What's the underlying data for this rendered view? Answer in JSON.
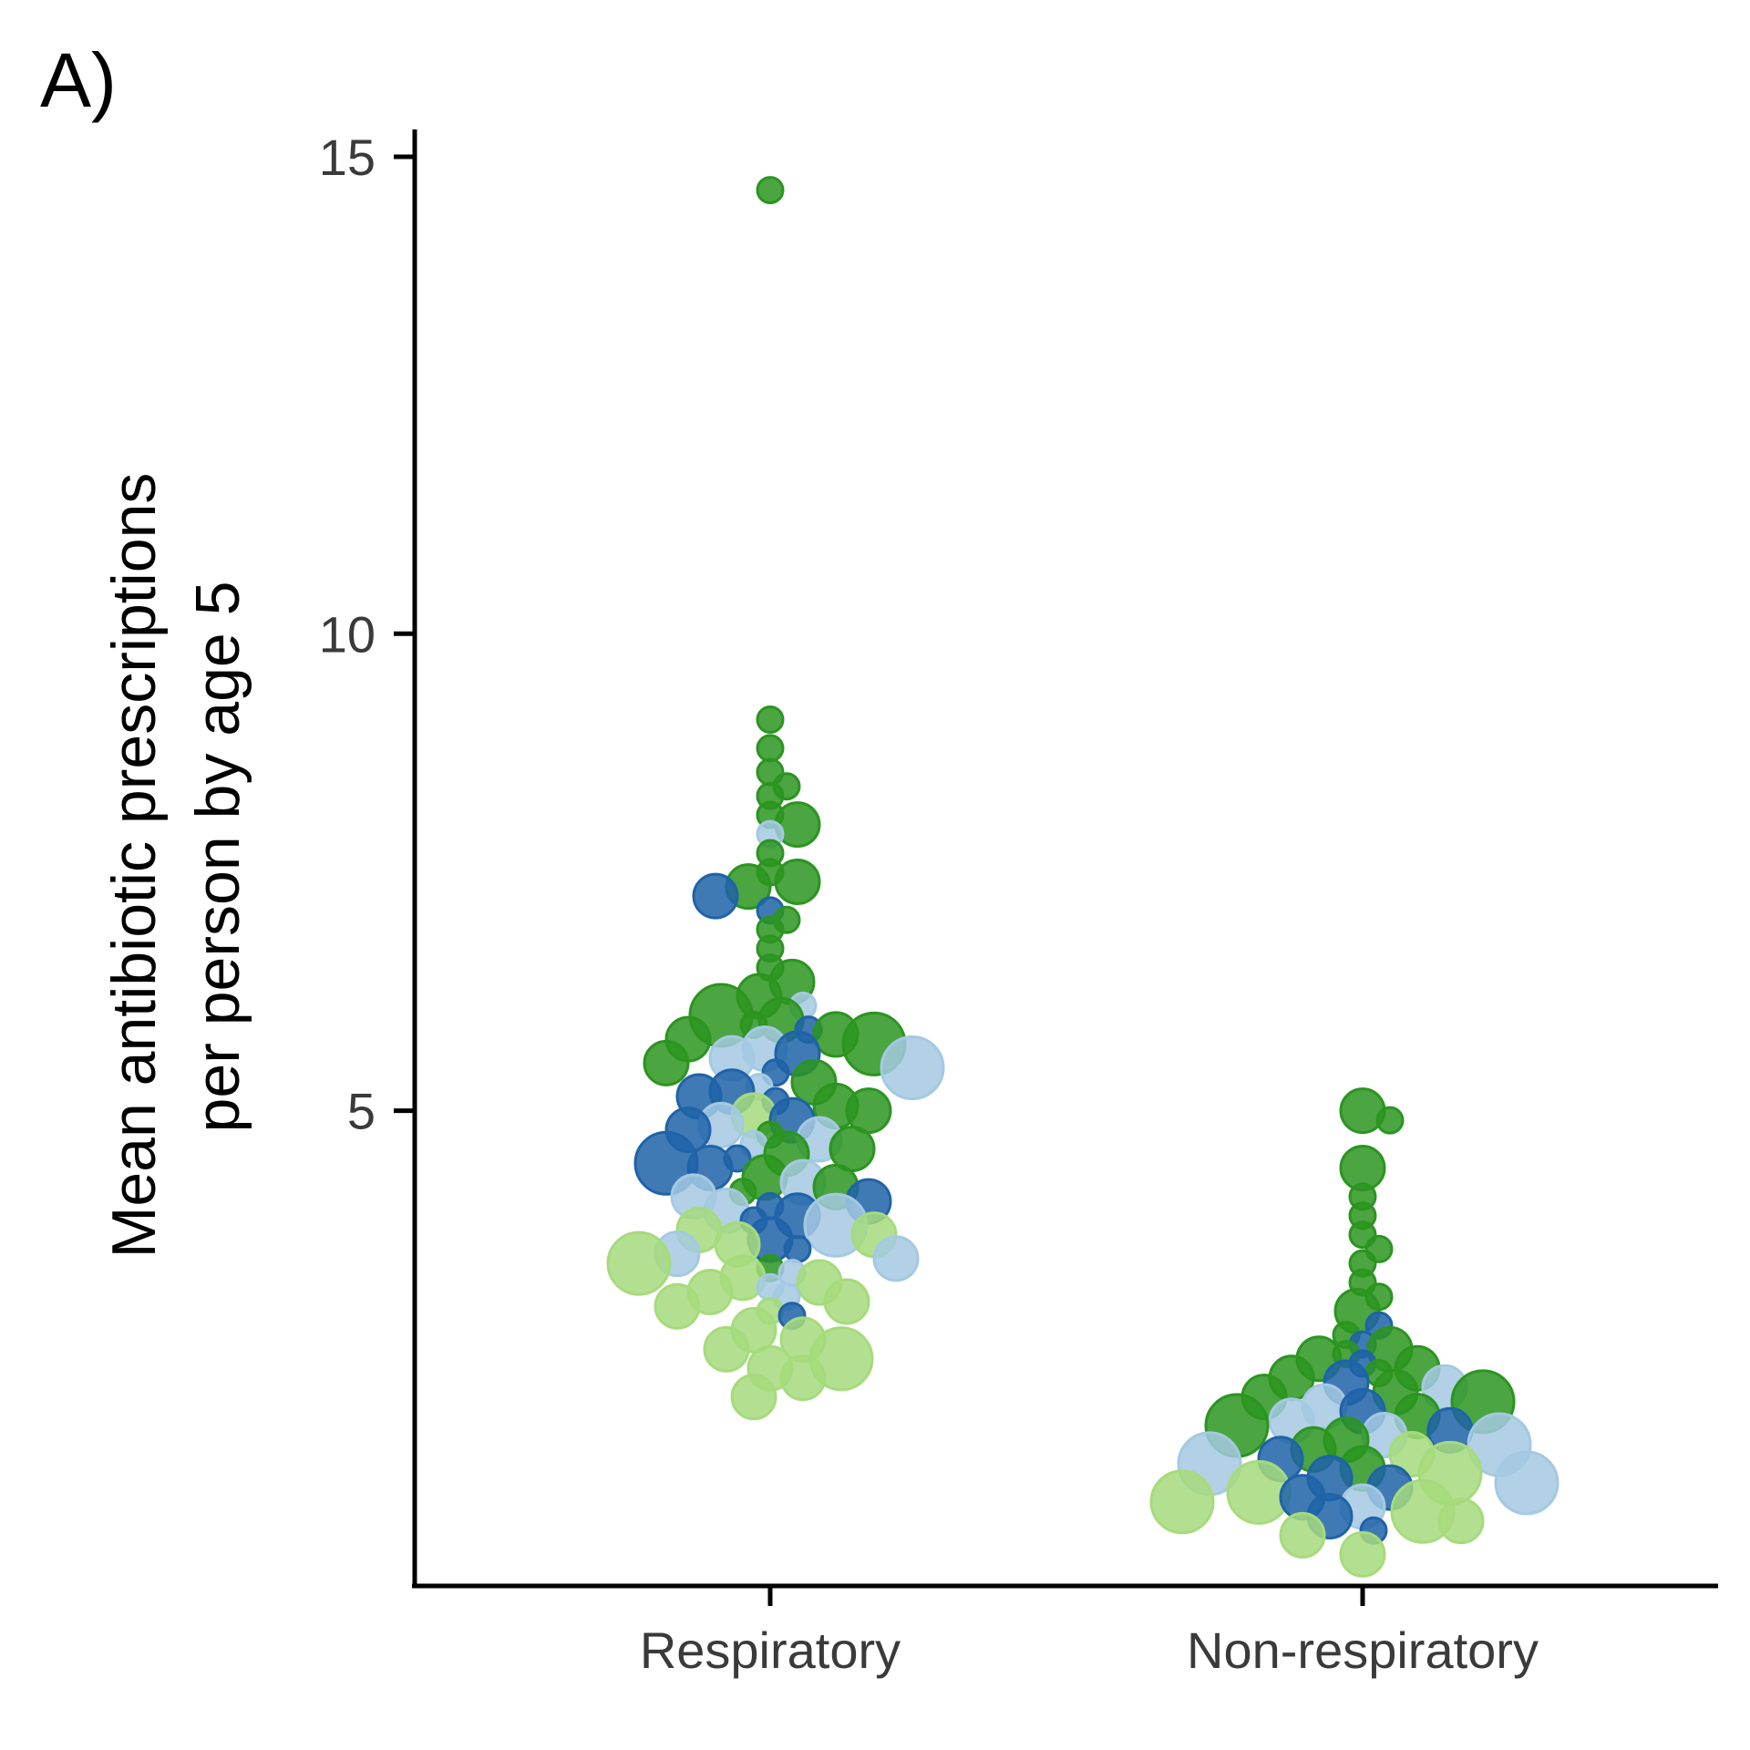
{
  "panel_label": "A)",
  "chart_data": {
    "type": "scatter",
    "subtype": "beeswarm",
    "title": "",
    "ylabel_lines": [
      "Mean antibiotic prescriptions",
      "per person by age 5"
    ],
    "xlabel": "",
    "categories": [
      "Respiratory",
      "Non-respiratory"
    ],
    "ylim": [
      -0.1,
      15.3
    ],
    "yticks": [
      5,
      10,
      15
    ],
    "grid": false,
    "legend": "none",
    "colors": {
      "dark_green": "#2b9520",
      "light_green": "#a6db7c",
      "dark_blue": "#1f63a8",
      "light_blue": "#a4c9e2"
    },
    "series": [
      {
        "category": "Respiratory",
        "points": [
          {
            "y": 14.65,
            "s": 1,
            "c": "dark_green"
          },
          {
            "y": 9.1,
            "s": 1,
            "c": "dark_green"
          },
          {
            "y": 8.8,
            "s": 1,
            "c": "dark_green"
          },
          {
            "y": 8.55,
            "s": 1,
            "c": "dark_green"
          },
          {
            "y": 8.4,
            "s": 1,
            "c": "dark_green"
          },
          {
            "y": 8.3,
            "s": 1,
            "c": "dark_green"
          },
          {
            "y": 8.1,
            "s": 1,
            "c": "dark_green"
          },
          {
            "y": 8.0,
            "s": 2,
            "c": "dark_green"
          },
          {
            "y": 7.9,
            "s": 1,
            "c": "light_blue"
          },
          {
            "y": 7.7,
            "s": 1,
            "c": "dark_green"
          },
          {
            "y": 7.5,
            "s": 1,
            "c": "dark_green"
          },
          {
            "y": 7.4,
            "s": 2,
            "c": "dark_green"
          },
          {
            "y": 7.35,
            "s": 2,
            "c": "dark_green"
          },
          {
            "y": 7.25,
            "s": 2,
            "c": "dark_blue"
          },
          {
            "y": 7.1,
            "s": 1,
            "c": "dark_blue"
          },
          {
            "y": 7.0,
            "s": 1,
            "c": "dark_green"
          },
          {
            "y": 6.9,
            "s": 1,
            "c": "dark_green"
          },
          {
            "y": 6.7,
            "s": 1,
            "c": "dark_green"
          },
          {
            "y": 6.5,
            "s": 1,
            "c": "dark_green"
          },
          {
            "y": 6.35,
            "s": 2,
            "c": "dark_green"
          },
          {
            "y": 6.2,
            "s": 2,
            "c": "dark_green"
          },
          {
            "y": 6.1,
            "s": 1,
            "c": "light_blue"
          },
          {
            "y": 6.0,
            "s": 3,
            "c": "dark_green"
          },
          {
            "y": 5.95,
            "s": 2,
            "c": "dark_green"
          },
          {
            "y": 5.9,
            "s": 1,
            "c": "dark_green"
          },
          {
            "y": 5.85,
            "s": 1,
            "c": "dark_blue"
          },
          {
            "y": 5.8,
            "s": 2,
            "c": "dark_green"
          },
          {
            "y": 5.75,
            "s": 2,
            "c": "dark_green"
          },
          {
            "y": 5.7,
            "s": 3,
            "c": "dark_green"
          },
          {
            "y": 5.65,
            "s": 2,
            "c": "light_blue"
          },
          {
            "y": 5.6,
            "s": 2,
            "c": "dark_blue"
          },
          {
            "y": 5.55,
            "s": 2,
            "c": "light_blue"
          },
          {
            "y": 5.5,
            "s": 2,
            "c": "dark_green"
          },
          {
            "y": 5.45,
            "s": 3,
            "c": "light_blue"
          },
          {
            "y": 5.4,
            "s": 1,
            "c": "dark_blue"
          },
          {
            "y": 5.3,
            "s": 2,
            "c": "dark_green"
          },
          {
            "y": 5.25,
            "s": 1,
            "c": "light_blue"
          },
          {
            "y": 5.2,
            "s": 2,
            "c": "dark_blue"
          },
          {
            "y": 5.15,
            "s": 2,
            "c": "dark_blue"
          },
          {
            "y": 5.1,
            "s": 1,
            "c": "dark_blue"
          },
          {
            "y": 5.05,
            "s": 2,
            "c": "dark_green"
          },
          {
            "y": 5.0,
            "s": 2,
            "c": "dark_green"
          },
          {
            "y": 4.95,
            "s": 2,
            "c": "light_green"
          },
          {
            "y": 4.9,
            "s": 2,
            "c": "dark_blue"
          },
          {
            "y": 4.85,
            "s": 2,
            "c": "light_blue"
          },
          {
            "y": 4.8,
            "s": 2,
            "c": "dark_blue"
          },
          {
            "y": 4.75,
            "s": 1,
            "c": "dark_green"
          },
          {
            "y": 4.7,
            "s": 2,
            "c": "light_blue"
          },
          {
            "y": 4.65,
            "s": 1,
            "c": "light_blue"
          },
          {
            "y": 4.6,
            "s": 2,
            "c": "dark_green"
          },
          {
            "y": 4.55,
            "s": 2,
            "c": "dark_green"
          },
          {
            "y": 4.5,
            "s": 1,
            "c": "dark_blue"
          },
          {
            "y": 4.45,
            "s": 3,
            "c": "dark_blue"
          },
          {
            "y": 4.4,
            "s": 2,
            "c": "dark_blue"
          },
          {
            "y": 4.3,
            "s": 2,
            "c": "dark_green"
          },
          {
            "y": 4.25,
            "s": 2,
            "c": "light_blue"
          },
          {
            "y": 4.2,
            "s": 2,
            "c": "dark_green"
          },
          {
            "y": 4.15,
            "s": 1,
            "c": "dark_green"
          },
          {
            "y": 4.1,
            "s": 2,
            "c": "light_blue"
          },
          {
            "y": 4.05,
            "s": 2,
            "c": "dark_blue"
          },
          {
            "y": 4.0,
            "s": 1,
            "c": "dark_blue"
          },
          {
            "y": 3.95,
            "s": 2,
            "c": "light_blue"
          },
          {
            "y": 3.9,
            "s": 2,
            "c": "dark_blue"
          },
          {
            "y": 3.85,
            "s": 1,
            "c": "dark_blue"
          },
          {
            "y": 3.8,
            "s": 3,
            "c": "light_blue"
          },
          {
            "y": 3.75,
            "s": 2,
            "c": "light_green"
          },
          {
            "y": 3.7,
            "s": 2,
            "c": "light_green"
          },
          {
            "y": 3.65,
            "s": 2,
            "c": "dark_blue"
          },
          {
            "y": 3.6,
            "s": 2,
            "c": "light_green"
          },
          {
            "y": 3.55,
            "s": 1,
            "c": "dark_blue"
          },
          {
            "y": 3.5,
            "s": 2,
            "c": "light_blue"
          },
          {
            "y": 3.45,
            "s": 2,
            "c": "light_blue"
          },
          {
            "y": 3.4,
            "s": 3,
            "c": "light_green"
          },
          {
            "y": 3.35,
            "s": 1,
            "c": "dark_green"
          },
          {
            "y": 3.3,
            "s": 1,
            "c": "light_blue"
          },
          {
            "y": 3.25,
            "s": 2,
            "c": "light_green"
          },
          {
            "y": 3.2,
            "s": 2,
            "c": "light_green"
          },
          {
            "y": 3.15,
            "s": 1,
            "c": "light_blue"
          },
          {
            "y": 3.1,
            "s": 2,
            "c": "light_green"
          },
          {
            "y": 3.05,
            "s": 1,
            "c": "light_blue"
          },
          {
            "y": 3.0,
            "s": 2,
            "c": "light_green"
          },
          {
            "y": 2.95,
            "s": 2,
            "c": "light_green"
          },
          {
            "y": 2.9,
            "s": 1,
            "c": "light_green"
          },
          {
            "y": 2.85,
            "s": 1,
            "c": "dark_blue"
          },
          {
            "y": 2.7,
            "s": 2,
            "c": "light_green"
          },
          {
            "y": 2.6,
            "s": 2,
            "c": "light_green"
          },
          {
            "y": 2.5,
            "s": 2,
            "c": "light_green"
          },
          {
            "y": 2.4,
            "s": 3,
            "c": "light_green"
          },
          {
            "y": 2.3,
            "s": 2,
            "c": "light_green"
          },
          {
            "y": 2.2,
            "s": 2,
            "c": "light_green"
          },
          {
            "y": 2.0,
            "s": 2,
            "c": "light_green"
          }
        ]
      },
      {
        "category": "Non-respiratory",
        "points": [
          {
            "y": 5.0,
            "s": 2,
            "c": "dark_green"
          },
          {
            "y": 4.9,
            "s": 1,
            "c": "dark_green"
          },
          {
            "y": 4.4,
            "s": 2,
            "c": "dark_green"
          },
          {
            "y": 4.1,
            "s": 1,
            "c": "dark_green"
          },
          {
            "y": 3.9,
            "s": 1,
            "c": "dark_green"
          },
          {
            "y": 3.7,
            "s": 1,
            "c": "dark_green"
          },
          {
            "y": 3.55,
            "s": 1,
            "c": "dark_green"
          },
          {
            "y": 3.4,
            "s": 1,
            "c": "dark_green"
          },
          {
            "y": 3.2,
            "s": 1,
            "c": "dark_green"
          },
          {
            "y": 3.05,
            "s": 1,
            "c": "dark_green"
          },
          {
            "y": 2.9,
            "s": 2,
            "c": "dark_green"
          },
          {
            "y": 2.75,
            "s": 1,
            "c": "dark_blue"
          },
          {
            "y": 2.65,
            "s": 1,
            "c": "dark_green"
          },
          {
            "y": 2.55,
            "s": 1,
            "c": "dark_blue"
          },
          {
            "y": 2.5,
            "s": 2,
            "c": "dark_green"
          },
          {
            "y": 2.45,
            "s": 1,
            "c": "dark_green"
          },
          {
            "y": 2.4,
            "s": 2,
            "c": "dark_green"
          },
          {
            "y": 2.35,
            "s": 1,
            "c": "dark_blue"
          },
          {
            "y": 2.3,
            "s": 2,
            "c": "dark_green"
          },
          {
            "y": 2.25,
            "s": 1,
            "c": "dark_green"
          },
          {
            "y": 2.2,
            "s": 2,
            "c": "dark_green"
          },
          {
            "y": 2.15,
            "s": 2,
            "c": "dark_blue"
          },
          {
            "y": 2.1,
            "s": 2,
            "c": "light_blue"
          },
          {
            "y": 2.05,
            "s": 2,
            "c": "dark_green"
          },
          {
            "y": 2.0,
            "s": 2,
            "c": "dark_green"
          },
          {
            "y": 1.95,
            "s": 3,
            "c": "dark_green"
          },
          {
            "y": 1.9,
            "s": 2,
            "c": "light_blue"
          },
          {
            "y": 1.85,
            "s": 2,
            "c": "dark_blue"
          },
          {
            "y": 1.8,
            "s": 2,
            "c": "dark_green"
          },
          {
            "y": 1.75,
            "s": 2,
            "c": "light_blue"
          },
          {
            "y": 1.7,
            "s": 3,
            "c": "dark_green"
          },
          {
            "y": 1.65,
            "s": 2,
            "c": "dark_blue"
          },
          {
            "y": 1.6,
            "s": 2,
            "c": "light_blue"
          },
          {
            "y": 1.55,
            "s": 2,
            "c": "dark_green"
          },
          {
            "y": 1.5,
            "s": 3,
            "c": "light_blue"
          },
          {
            "y": 1.45,
            "s": 2,
            "c": "dark_green"
          },
          {
            "y": 1.4,
            "s": 2,
            "c": "light_green"
          },
          {
            "y": 1.35,
            "s": 2,
            "c": "dark_blue"
          },
          {
            "y": 1.3,
            "s": 3,
            "c": "light_blue"
          },
          {
            "y": 1.25,
            "s": 2,
            "c": "dark_green"
          },
          {
            "y": 1.2,
            "s": 3,
            "c": "light_green"
          },
          {
            "y": 1.15,
            "s": 2,
            "c": "dark_blue"
          },
          {
            "y": 1.1,
            "s": 3,
            "c": "light_blue"
          },
          {
            "y": 1.05,
            "s": 2,
            "c": "dark_blue"
          },
          {
            "y": 1.0,
            "s": 3,
            "c": "light_green"
          },
          {
            "y": 0.95,
            "s": 2,
            "c": "dark_blue"
          },
          {
            "y": 0.9,
            "s": 3,
            "c": "light_green"
          },
          {
            "y": 0.85,
            "s": 2,
            "c": "light_blue"
          },
          {
            "y": 0.8,
            "s": 3,
            "c": "light_green"
          },
          {
            "y": 0.75,
            "s": 2,
            "c": "dark_blue"
          },
          {
            "y": 0.7,
            "s": 2,
            "c": "light_green"
          },
          {
            "y": 0.6,
            "s": 1,
            "c": "dark_blue"
          },
          {
            "y": 0.55,
            "s": 2,
            "c": "light_green"
          },
          {
            "y": 0.35,
            "s": 2,
            "c": "light_green"
          }
        ]
      }
    ]
  }
}
